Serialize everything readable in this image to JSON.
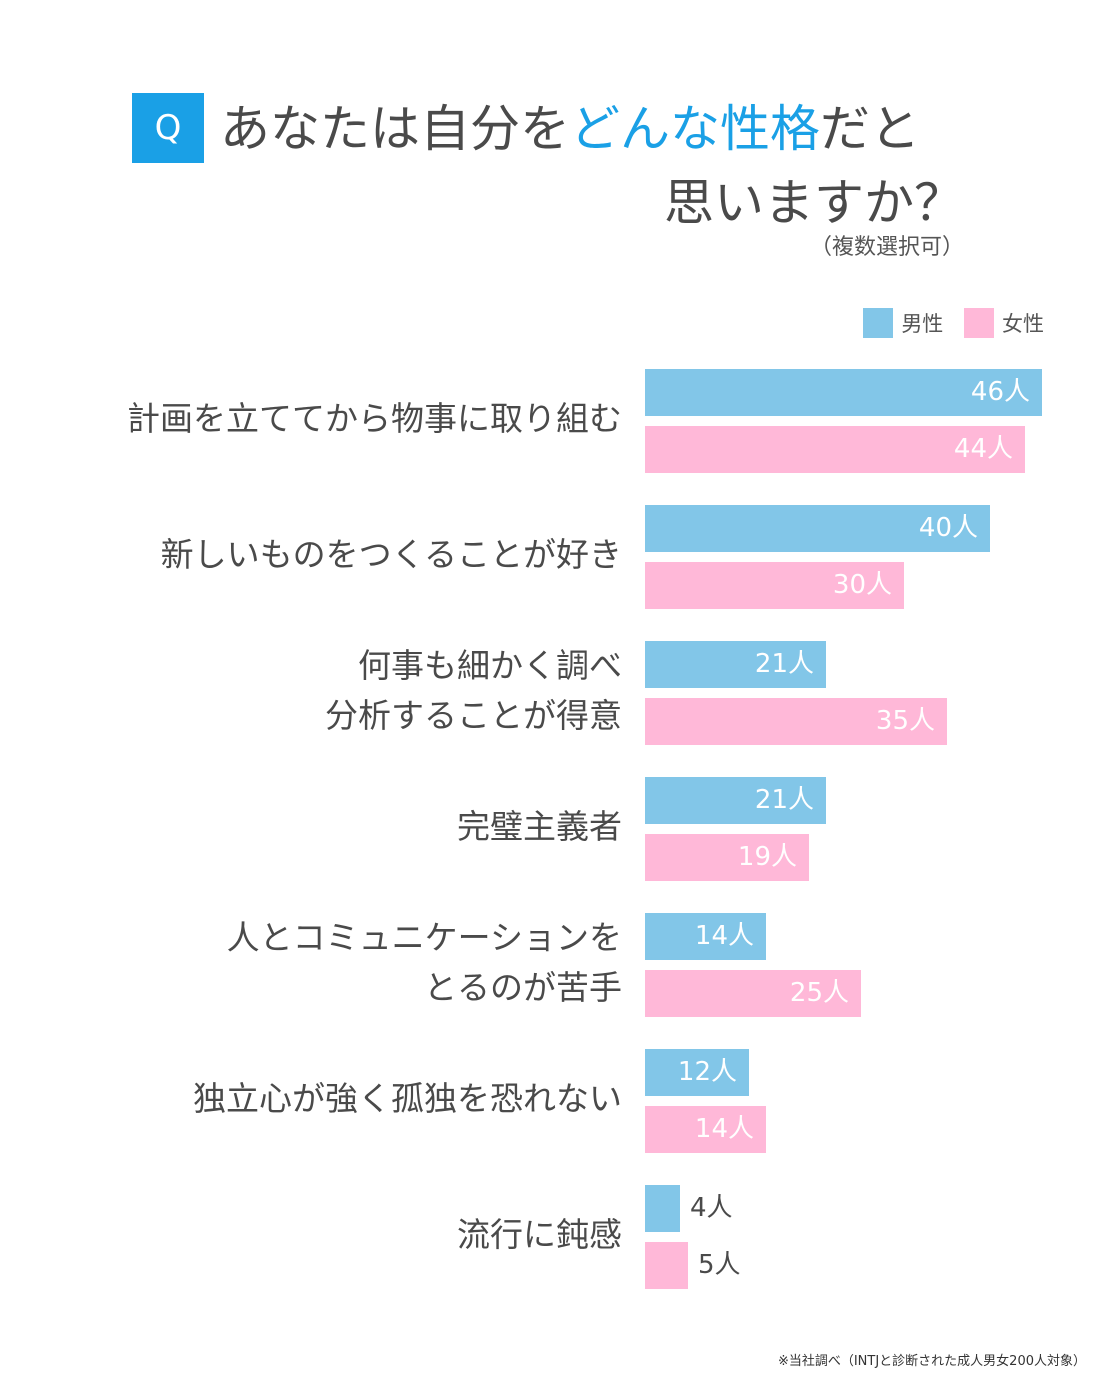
{
  "header": {
    "badge": "Q",
    "title_pre": "あなたは自分を",
    "title_highlight": "どんな性格",
    "title_post": "だと",
    "title_line2": "思いますか？",
    "subtitle": "（複数選択可）"
  },
  "colors": {
    "accent": "#1aa0e6",
    "male": "#82c6e8",
    "female": "#ffb8d8"
  },
  "chart_data": {
    "type": "bar",
    "orientation": "horizontal",
    "unit": "人",
    "legend_position": "top-right",
    "categories": [
      [
        "計画を立ててから物事に取り組む"
      ],
      [
        "新しいものをつくることが好き"
      ],
      [
        "何事も細かく調べ",
        "分析することが得意"
      ],
      [
        "完璧主義者"
      ],
      [
        "人とコミュニケーションを",
        "とるのが苦手"
      ],
      [
        "独立心が強く孤独を恐れない"
      ],
      [
        "流行に鈍感"
      ]
    ],
    "series": [
      {
        "name": "男性",
        "values": [
          46,
          40,
          21,
          21,
          14,
          12,
          4
        ]
      },
      {
        "name": "女性",
        "values": [
          44,
          30,
          35,
          19,
          25,
          14,
          5
        ]
      }
    ]
  },
  "footnote": "※当社調べ（INTJと診断された成人男女200人対象）"
}
